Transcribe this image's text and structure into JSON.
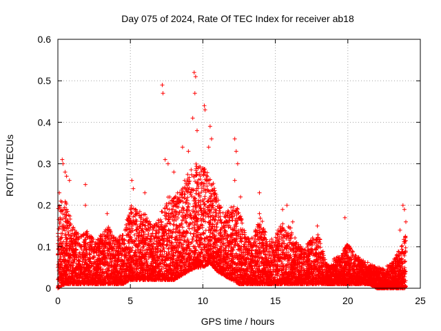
{
  "chart_data": {
    "type": "scatter",
    "title": "Day 075 of 2024, Rate Of TEC Index for receiver ab18",
    "xlabel": "GPS time / hours",
    "ylabel": "ROTI / TECUs",
    "xlim": [
      0,
      25
    ],
    "ylim": [
      0,
      0.6
    ],
    "xticks": [
      0,
      5,
      10,
      15,
      20,
      25
    ],
    "yticks": [
      0,
      0.1,
      0.2,
      0.3,
      0.4,
      0.5,
      0.6
    ],
    "xtick_labels": [
      "0",
      "5",
      "10",
      "15",
      "20",
      "25"
    ],
    "ytick_labels": [
      "0",
      "0.1",
      "0.2",
      "0.3",
      "0.4",
      "0.5",
      "0.6"
    ],
    "grid": true,
    "marker": "+",
    "marker_color": "#ff0000",
    "series": [
      {
        "name": "ROTI",
        "notable_points": [
          {
            "x": 0.3,
            "y": 0.31
          },
          {
            "x": 0.35,
            "y": 0.3
          },
          {
            "x": 0.5,
            "y": 0.28
          },
          {
            "x": 0.6,
            "y": 0.27
          },
          {
            "x": 0.8,
            "y": 0.26
          },
          {
            "x": 0.1,
            "y": 0.23
          },
          {
            "x": 0.2,
            "y": 0.21
          },
          {
            "x": 0.15,
            "y": 0.17
          },
          {
            "x": 1.9,
            "y": 0.25
          },
          {
            "x": 1.9,
            "y": 0.2
          },
          {
            "x": 3.4,
            "y": 0.18
          },
          {
            "x": 5.1,
            "y": 0.26
          },
          {
            "x": 5.2,
            "y": 0.24
          },
          {
            "x": 6.0,
            "y": 0.23
          },
          {
            "x": 7.2,
            "y": 0.49
          },
          {
            "x": 7.25,
            "y": 0.47
          },
          {
            "x": 7.4,
            "y": 0.31
          },
          {
            "x": 7.6,
            "y": 0.3
          },
          {
            "x": 8.0,
            "y": 0.28
          },
          {
            "x": 8.6,
            "y": 0.34
          },
          {
            "x": 9.0,
            "y": 0.33
          },
          {
            "x": 9.4,
            "y": 0.52
          },
          {
            "x": 9.5,
            "y": 0.51
          },
          {
            "x": 9.45,
            "y": 0.47
          },
          {
            "x": 9.3,
            "y": 0.41
          },
          {
            "x": 9.6,
            "y": 0.38
          },
          {
            "x": 10.1,
            "y": 0.44
          },
          {
            "x": 10.15,
            "y": 0.43
          },
          {
            "x": 10.5,
            "y": 0.39
          },
          {
            "x": 10.6,
            "y": 0.36
          },
          {
            "x": 10.4,
            "y": 0.34
          },
          {
            "x": 12.2,
            "y": 0.36
          },
          {
            "x": 12.3,
            "y": 0.33
          },
          {
            "x": 12.4,
            "y": 0.3
          },
          {
            "x": 12.2,
            "y": 0.26
          },
          {
            "x": 12.6,
            "y": 0.22
          },
          {
            "x": 13.9,
            "y": 0.23
          },
          {
            "x": 13.9,
            "y": 0.18
          },
          {
            "x": 15.5,
            "y": 0.19
          },
          {
            "x": 15.8,
            "y": 0.2
          },
          {
            "x": 16.2,
            "y": 0.16
          },
          {
            "x": 17.9,
            "y": 0.15
          },
          {
            "x": 19.8,
            "y": 0.17
          },
          {
            "x": 23.8,
            "y": 0.2
          },
          {
            "x": 23.9,
            "y": 0.19
          },
          {
            "x": 24.0,
            "y": 0.16
          },
          {
            "x": 23.6,
            "y": 0.14
          }
        ],
        "envelope": {
          "x": [
            0,
            0.5,
            1,
            1.5,
            2,
            2.5,
            3,
            3.5,
            4,
            4.5,
            5,
            5.5,
            6,
            6.5,
            7,
            7.5,
            8,
            8.5,
            9,
            9.5,
            10,
            10.5,
            11,
            11.5,
            12,
            12.5,
            13,
            13.5,
            14,
            14.5,
            15,
            15.5,
            16,
            16.5,
            17,
            17.5,
            18,
            18.5,
            19,
            19.5,
            20,
            20.5,
            21,
            21.5,
            22,
            22.5,
            23,
            23.5,
            24
          ],
          "y_upper": [
            0.2,
            0.22,
            0.15,
            0.13,
            0.14,
            0.12,
            0.13,
            0.15,
            0.12,
            0.13,
            0.2,
            0.19,
            0.18,
            0.15,
            0.17,
            0.22,
            0.22,
            0.24,
            0.28,
            0.3,
            0.3,
            0.28,
            0.22,
            0.18,
            0.2,
            0.19,
            0.12,
            0.13,
            0.18,
            0.11,
            0.13,
            0.16,
            0.15,
            0.11,
            0.1,
            0.12,
            0.13,
            0.06,
            0.07,
            0.08,
            0.11,
            0.08,
            0.07,
            0.06,
            0.05,
            0.05,
            0.06,
            0.09,
            0.13
          ],
          "y_lower": [
            0.0,
            0.01,
            0.01,
            0.01,
            0.01,
            0.01,
            0.01,
            0.01,
            0.01,
            0.01,
            0.02,
            0.02,
            0.02,
            0.02,
            0.02,
            0.02,
            0.02,
            0.03,
            0.04,
            0.05,
            0.05,
            0.06,
            0.04,
            0.03,
            0.02,
            0.01,
            0.01,
            0.01,
            0.01,
            0.01,
            0.01,
            0.01,
            0.01,
            0.01,
            0.01,
            0.01,
            0.01,
            0.01,
            0.01,
            0.01,
            0.01,
            0.01,
            0.01,
            0.01,
            0.0,
            0.0,
            0.0,
            0.0,
            0.0
          ]
        }
      }
    ]
  }
}
